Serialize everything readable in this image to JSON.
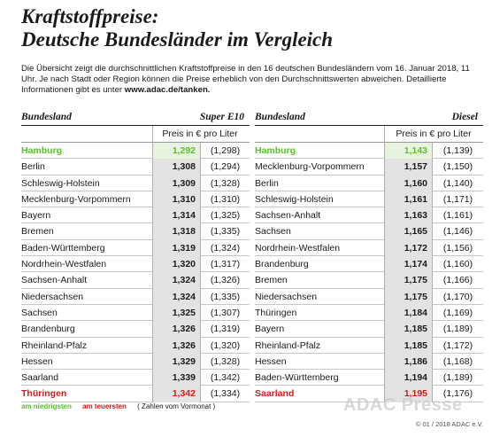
{
  "title": {
    "line1": "Kraftstoffpreise:",
    "line2": "Deutsche Bundesländer im Vergleich"
  },
  "intro": {
    "text": "Die Übersicht zeigt die durchschnittlichen Kraftstoffpreise in den 16 deutschen Bundesländern vom 16. Januar 2018, 11 Uhr. Je nach Stadt oder Region können die Preise erheblich von den Durchschnittswerten abweichen. Detaillierte Informationen gibt es unter ",
    "link": "www.adac.de/tanken."
  },
  "super": {
    "col_label": "Bundesland",
    "fuel_label": "Super E10",
    "unit_label": "Preis in € pro Liter",
    "rows": [
      {
        "name": "Hamburg",
        "price": "1,292",
        "prev": "(1,298)",
        "mark": "low"
      },
      {
        "name": "Berlin",
        "price": "1,308",
        "prev": "(1,294)",
        "mark": ""
      },
      {
        "name": "Schleswig-Holstein",
        "price": "1,309",
        "prev": "(1,328)",
        "mark": ""
      },
      {
        "name": "Mecklenburg-Vorpommern",
        "price": "1,310",
        "prev": "(1,310)",
        "mark": ""
      },
      {
        "name": "Bayern",
        "price": "1,314",
        "prev": "(1,325)",
        "mark": ""
      },
      {
        "name": "Bremen",
        "price": "1,318",
        "prev": "(1,335)",
        "mark": ""
      },
      {
        "name": "Baden-Württemberg",
        "price": "1,319",
        "prev": "(1,324)",
        "mark": ""
      },
      {
        "name": "Nordrhein-Westfalen",
        "price": "1,320",
        "prev": "(1,317)",
        "mark": ""
      },
      {
        "name": "Sachsen-Anhalt",
        "price": "1,324",
        "prev": "(1,326)",
        "mark": ""
      },
      {
        "name": "Niedersachsen",
        "price": "1,324",
        "prev": "(1,335)",
        "mark": ""
      },
      {
        "name": "Sachsen",
        "price": "1,325",
        "prev": "(1,307)",
        "mark": ""
      },
      {
        "name": "Brandenburg",
        "price": "1,326",
        "prev": "(1,319)",
        "mark": ""
      },
      {
        "name": "Rheinland-Pfalz",
        "price": "1,326",
        "prev": "(1,320)",
        "mark": ""
      },
      {
        "name": "Hessen",
        "price": "1,329",
        "prev": "(1,328)",
        "mark": ""
      },
      {
        "name": "Saarland",
        "price": "1,339",
        "prev": "(1,342)",
        "mark": ""
      },
      {
        "name": "Thüringen",
        "price": "1,342",
        "prev": "(1,334)",
        "mark": "high"
      }
    ]
  },
  "diesel": {
    "col_label": "Bundesland",
    "fuel_label": "Diesel",
    "unit_label": "Preis in € pro Liter",
    "rows": [
      {
        "name": "Hamburg",
        "price": "1,143",
        "prev": "(1,139)",
        "mark": "low"
      },
      {
        "name": "Mecklenburg-Vorpommern",
        "price": "1,157",
        "prev": "(1,150)",
        "mark": ""
      },
      {
        "name": "Berlin",
        "price": "1,160",
        "prev": "(1,140)",
        "mark": ""
      },
      {
        "name": "Schleswig-Holstein",
        "price": "1,161",
        "prev": "(1,171)",
        "mark": ""
      },
      {
        "name": "Sachsen-Anhalt",
        "price": "1,163",
        "prev": "(1,161)",
        "mark": ""
      },
      {
        "name": "Sachsen",
        "price": "1,165",
        "prev": "(1,146)",
        "mark": ""
      },
      {
        "name": "Nordrhein-Westfalen",
        "price": "1,172",
        "prev": "(1,156)",
        "mark": ""
      },
      {
        "name": "Brandenburg",
        "price": "1,174",
        "prev": "(1,160)",
        "mark": ""
      },
      {
        "name": "Bremen",
        "price": "1,175",
        "prev": "(1,166)",
        "mark": ""
      },
      {
        "name": "Niedersachsen",
        "price": "1,175",
        "prev": "(1,170)",
        "mark": ""
      },
      {
        "name": "Thüringen",
        "price": "1,184",
        "prev": "(1,169)",
        "mark": ""
      },
      {
        "name": "Bayern",
        "price": "1,185",
        "prev": "(1,189)",
        "mark": ""
      },
      {
        "name": "Rheinland-Pfalz",
        "price": "1,185",
        "prev": "(1,172)",
        "mark": ""
      },
      {
        "name": "Hessen",
        "price": "1,186",
        "prev": "(1,168)",
        "mark": ""
      },
      {
        "name": "Baden-Württemberg",
        "price": "1,194",
        "prev": "(1,189)",
        "mark": ""
      },
      {
        "name": "Saarland",
        "price": "1,195",
        "prev": "(1,176)",
        "mark": "high"
      }
    ]
  },
  "legend": {
    "low": "am niedrigsten",
    "high": "am teuersten",
    "note": "( Zahlen vom Vormonat )"
  },
  "colors": {
    "low": "#5cc02a",
    "high": "#d21d1d"
  },
  "copyright": "© 01 / 2018 ADAC e.V.",
  "watermark": "ADAC Presse"
}
